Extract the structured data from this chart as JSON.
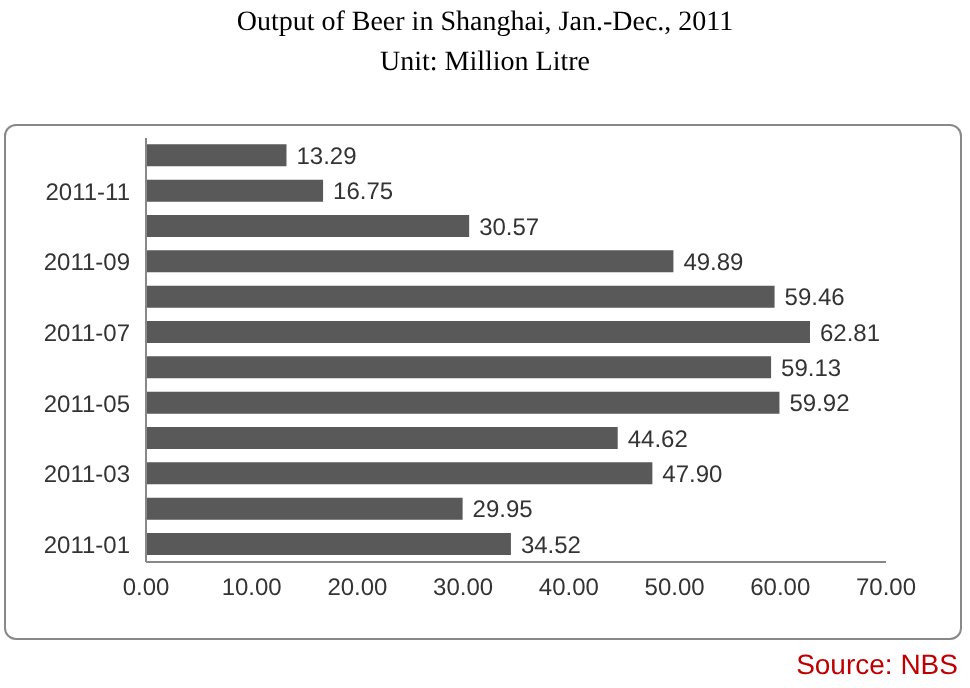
{
  "chart_data": {
    "type": "bar",
    "orientation": "horizontal",
    "title": "Output of Beer in Shanghai, Jan.-Dec., 2011",
    "subtitle": "Unit: Million Litre",
    "categories": [
      null,
      "2011-11",
      null,
      "2011-09",
      null,
      "2011-07",
      null,
      "2011-05",
      null,
      "2011-03",
      null,
      "2011-01"
    ],
    "values": [
      13.29,
      16.75,
      30.57,
      49.89,
      59.46,
      62.81,
      59.13,
      59.92,
      44.62,
      47.9,
      29.95,
      34.52
    ],
    "value_labels": [
      "13.29",
      "16.75",
      "30.57",
      "49.89",
      "59.46",
      "62.81",
      "59.13",
      "59.92",
      "44.62",
      "47.90",
      "29.95",
      "34.52"
    ],
    "color": "#595959",
    "xlim": [
      0,
      70
    ],
    "xticks": [
      {
        "value": 0,
        "label": "0.00"
      },
      {
        "value": 10,
        "label": "10.00"
      },
      {
        "value": 20,
        "label": "20.00"
      },
      {
        "value": 30,
        "label": "30.00"
      },
      {
        "value": 40,
        "label": "40.00"
      },
      {
        "value": 50,
        "label": "50.00"
      },
      {
        "value": 60,
        "label": "60.00"
      },
      {
        "value": 70,
        "label": "70.00"
      }
    ],
    "annotations": [
      "Source: NBS"
    ]
  }
}
